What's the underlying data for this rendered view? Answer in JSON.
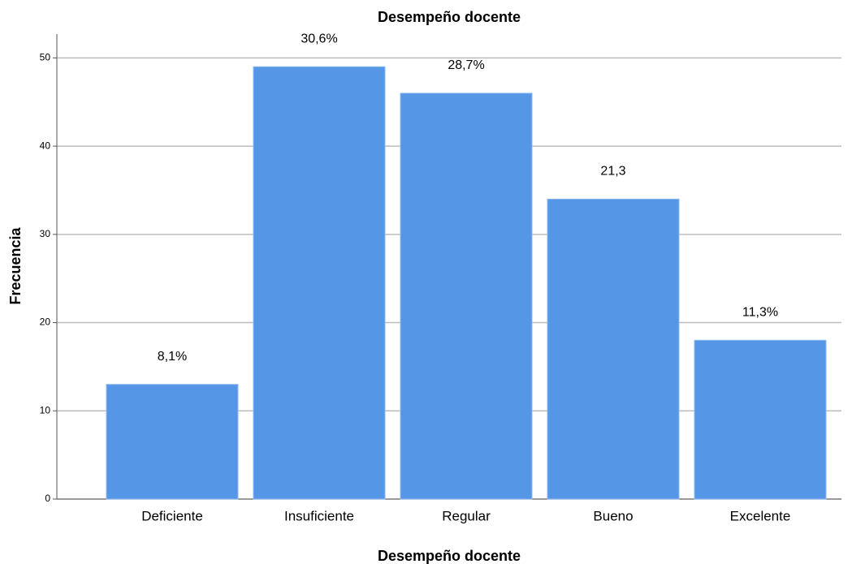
{
  "chart_data": {
    "type": "bar",
    "title": "Desempeño docente",
    "x_label": "Desempeño docente",
    "y_label": "Frecuencia",
    "categories": [
      "Deficiente",
      "Insuficiente",
      "Regular",
      "Bueno",
      "Excelente"
    ],
    "values": [
      13,
      49,
      46,
      34,
      18
    ],
    "annotations": [
      "8,1%",
      "30,6%",
      "28,7%",
      "21,3",
      "11,3%"
    ],
    "color": "#5596e6",
    "ylim": [
      0,
      52.7
    ],
    "yticks": [
      0,
      10,
      20,
      30,
      40,
      50
    ],
    "grid": true
  }
}
